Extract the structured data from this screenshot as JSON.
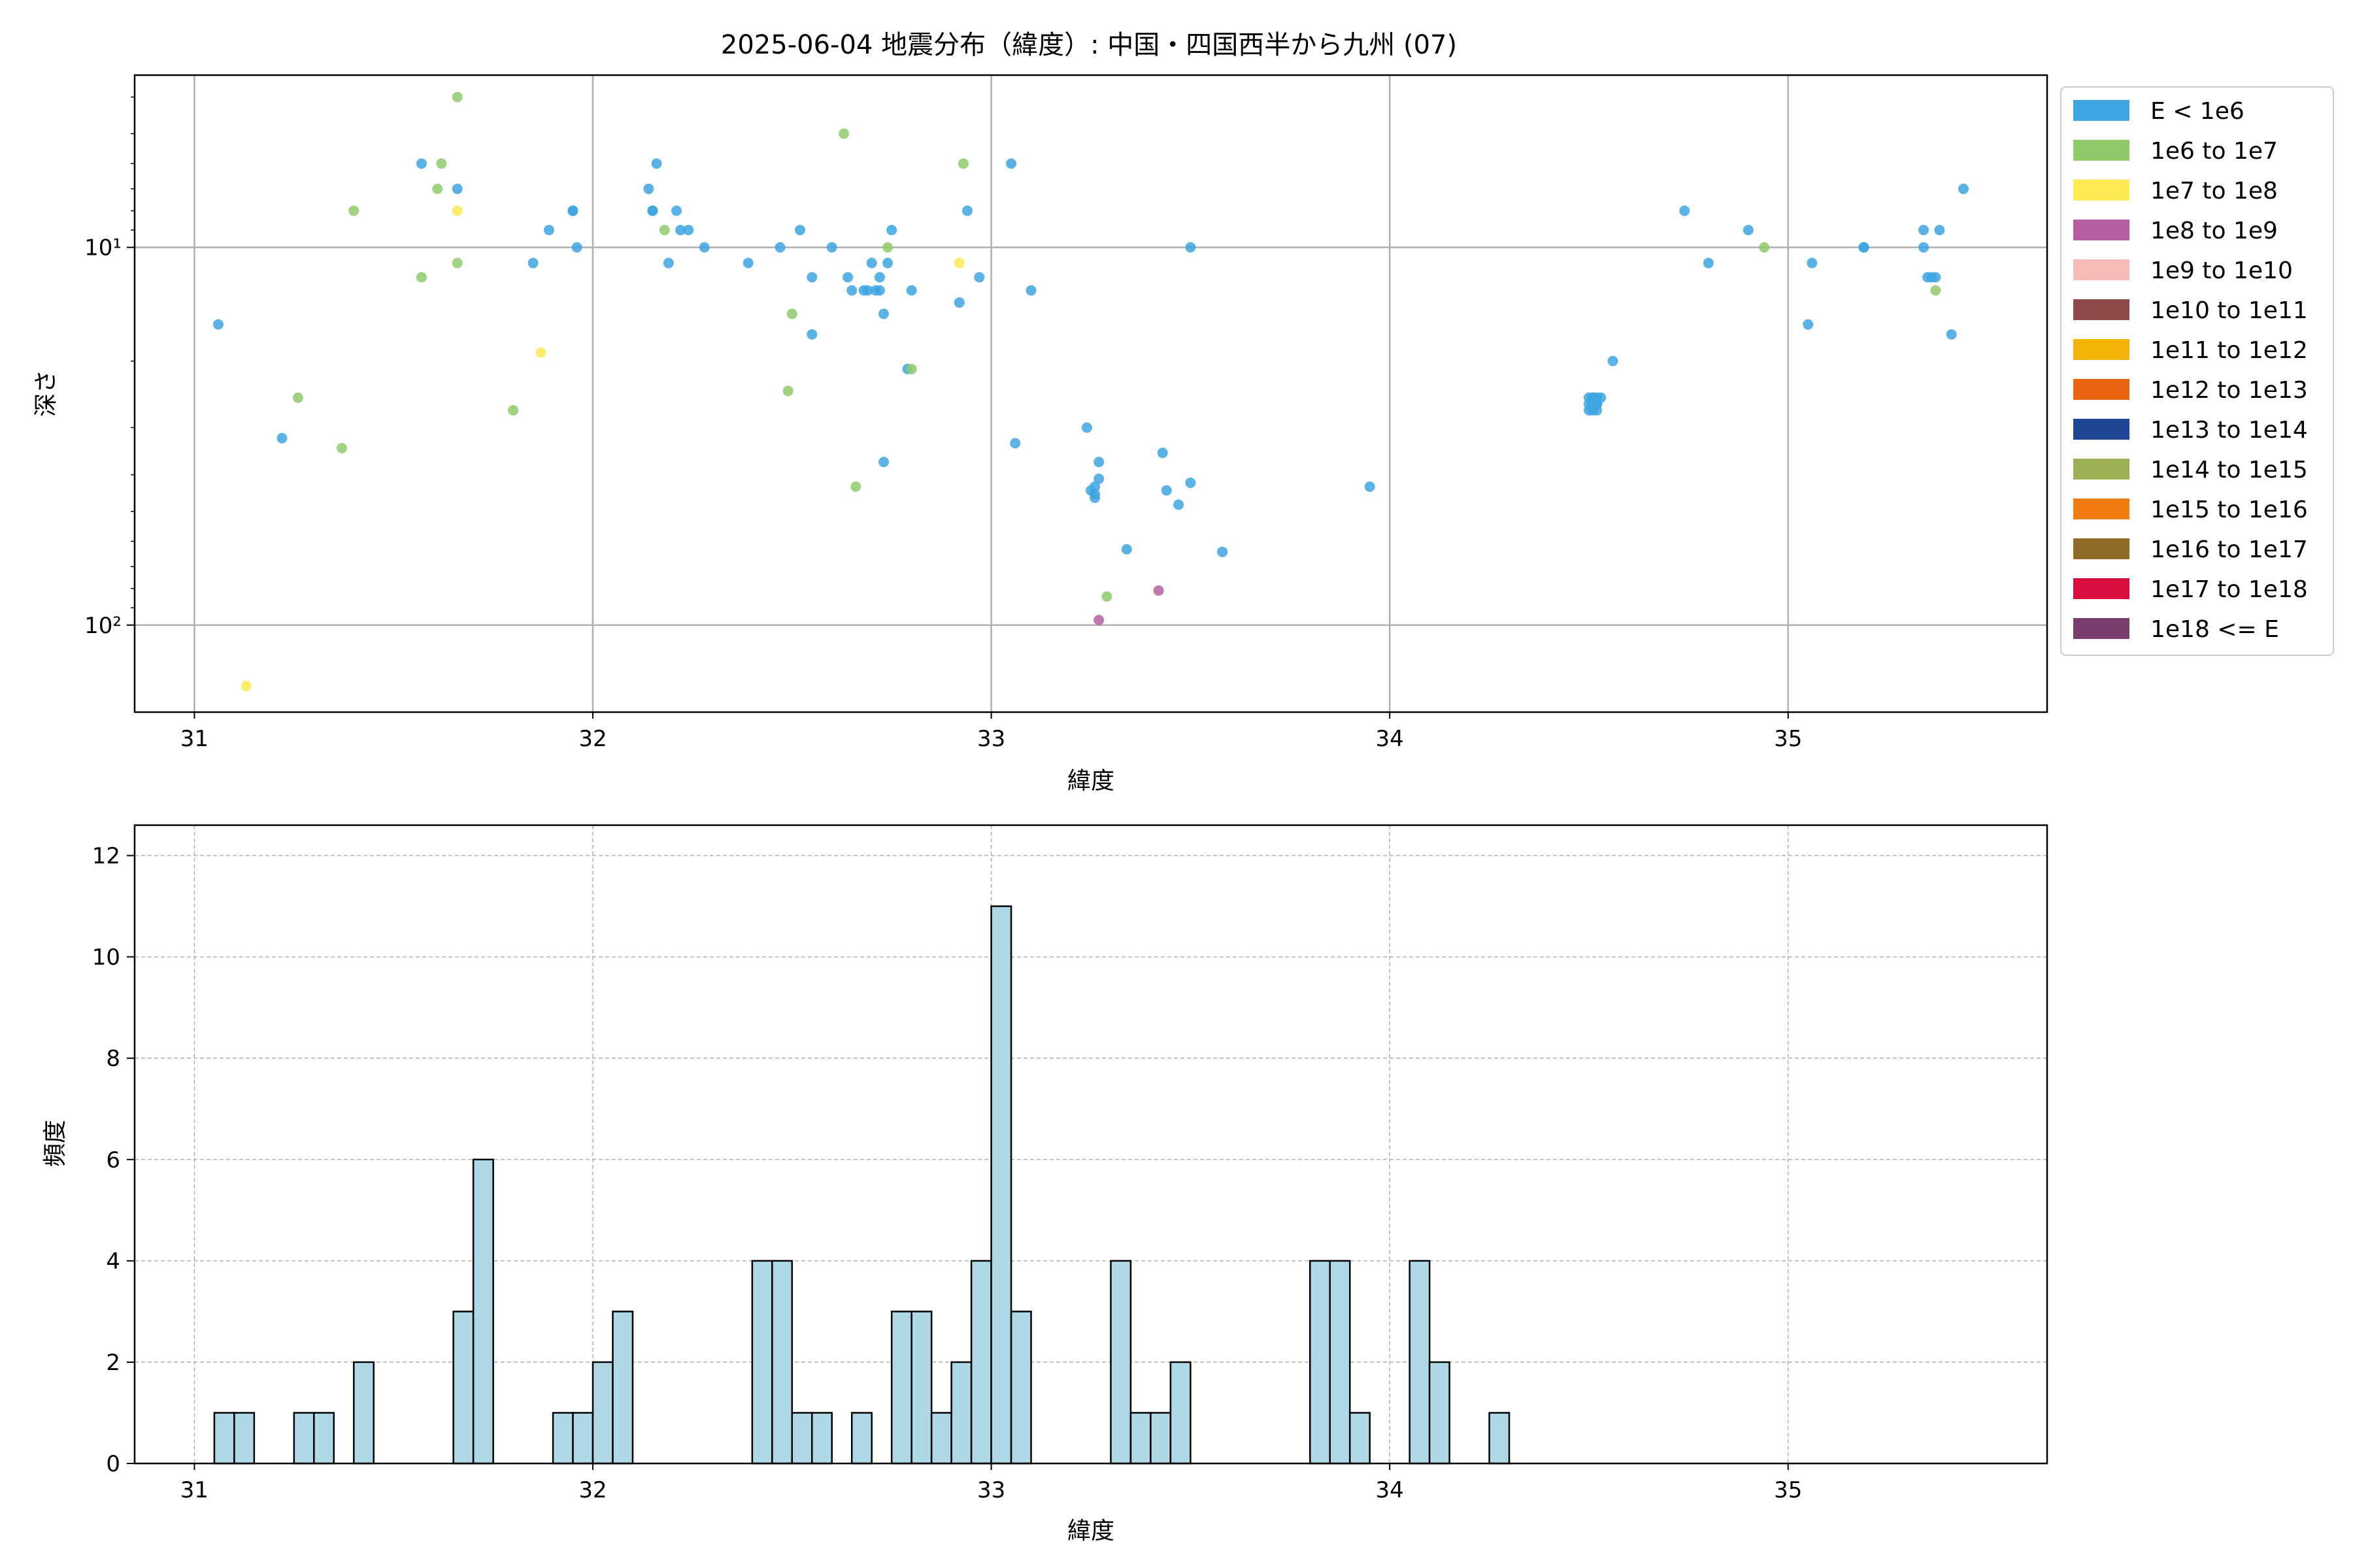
{
  "title": "2025-06-04 地震分布（緯度）: 中国・四国西半から九州 (07)",
  "colors": {
    "hist_fill": "#add8e6",
    "hist_edge": "#000000",
    "grid": "#b0b0b0",
    "axes": "#000000"
  },
  "chart_data": [
    {
      "type": "scatter",
      "xlabel": "緯度",
      "ylabel": "深さ",
      "yscale": "log",
      "yinverted": true,
      "xlim": [
        30.85,
        35.65
      ],
      "ylim": [
        170,
        3.5
      ],
      "xticks": [
        31,
        32,
        33,
        34,
        35
      ],
      "yticks": [
        {
          "value": 10,
          "label": "10¹"
        },
        {
          "value": 100,
          "label": "10²"
        }
      ],
      "grid": true,
      "legend": {
        "placement": "outside-right",
        "entries": [
          {
            "label": "E < 1e6",
            "color": "#3da5e0"
          },
          {
            "label": "1e6 to 1e7",
            "color": "#8fcb6b"
          },
          {
            "label": "1e7 to 1e8",
            "color": "#fdea55"
          },
          {
            "label": "1e8 to 1e9",
            "color": "#b560a3"
          },
          {
            "label": "1e9 to 1e10",
            "color": "#f4bcb4"
          },
          {
            "label": "1e10 to 1e11",
            "color": "#8e4a49"
          },
          {
            "label": "1e11 to 1e12",
            "color": "#f5b40a"
          },
          {
            "label": "1e12 to 1e13",
            "color": "#e8640e"
          },
          {
            "label": "1e13 to 1e14",
            "color": "#1f4793"
          },
          {
            "label": "1e14 to 1e15",
            "color": "#9cb056"
          },
          {
            "label": "1e15 to 1e16",
            "color": "#f07c12"
          },
          {
            "label": "1e16 to 1e17",
            "color": "#8f6a25"
          },
          {
            "label": "1e17 to 1e18",
            "color": "#d80f3e"
          },
          {
            "label": "1e18 <= E",
            "color": "#7a3e6c"
          }
        ]
      },
      "series": [
        {
          "name": "E < 1e6",
          "color": "#3da5e0",
          "points": [
            [
              31.06,
              16
            ],
            [
              31.22,
              32
            ],
            [
              31.57,
              6
            ],
            [
              31.66,
              7
            ],
            [
              31.85,
              11
            ],
            [
              31.89,
              9
            ],
            [
              31.95,
              8
            ],
            [
              31.95,
              8
            ],
            [
              31.96,
              10
            ],
            [
              32.14,
              7
            ],
            [
              32.15,
              8
            ],
            [
              32.15,
              8
            ],
            [
              32.16,
              6
            ],
            [
              32.19,
              11
            ],
            [
              32.21,
              8
            ],
            [
              32.22,
              9
            ],
            [
              32.24,
              9
            ],
            [
              32.28,
              10
            ],
            [
              32.39,
              11
            ],
            [
              32.47,
              10
            ],
            [
              32.52,
              9
            ],
            [
              32.55,
              12
            ],
            [
              32.55,
              17
            ],
            [
              32.6,
              10
            ],
            [
              32.64,
              12
            ],
            [
              32.65,
              13
            ],
            [
              32.68,
              13
            ],
            [
              32.69,
              13
            ],
            [
              32.7,
              11
            ],
            [
              32.71,
              13
            ],
            [
              32.72,
              12
            ],
            [
              32.72,
              13
            ],
            [
              32.73,
              15
            ],
            [
              32.74,
              11
            ],
            [
              32.75,
              9
            ],
            [
              32.79,
              21
            ],
            [
              32.8,
              13
            ],
            [
              32.73,
              37
            ],
            [
              32.92,
              14
            ],
            [
              32.94,
              8
            ],
            [
              32.97,
              12
            ],
            [
              33.05,
              6
            ],
            [
              33.06,
              33
            ],
            [
              33.1,
              13
            ],
            [
              33.24,
              30
            ],
            [
              33.25,
              44
            ],
            [
              33.26,
              45
            ],
            [
              33.26,
              43
            ],
            [
              33.26,
              46
            ],
            [
              33.27,
              41
            ],
            [
              33.27,
              37
            ],
            [
              33.34,
              63
            ],
            [
              33.43,
              35
            ],
            [
              33.44,
              44
            ],
            [
              33.47,
              48
            ],
            [
              33.5,
              42
            ],
            [
              33.5,
              10
            ],
            [
              33.58,
              64
            ],
            [
              33.95,
              43
            ],
            [
              34.5,
              26
            ],
            [
              34.51,
              27
            ],
            [
              34.52,
              26
            ],
            [
              34.51,
              25
            ],
            [
              34.52,
              27
            ],
            [
              34.5,
              25
            ],
            [
              34.53,
              25
            ],
            [
              34.51,
              26
            ],
            [
              34.52,
              26
            ],
            [
              34.51,
              25
            ],
            [
              34.5,
              27
            ],
            [
              34.52,
              25
            ],
            [
              34.56,
              20
            ],
            [
              34.74,
              8
            ],
            [
              34.8,
              11
            ],
            [
              34.9,
              9
            ],
            [
              35.06,
              11
            ],
            [
              35.05,
              16
            ],
            [
              35.19,
              10
            ],
            [
              35.19,
              10
            ],
            [
              35.34,
              9
            ],
            [
              35.34,
              10
            ],
            [
              35.35,
              12
            ],
            [
              35.36,
              12
            ],
            [
              35.37,
              12
            ],
            [
              35.38,
              9
            ],
            [
              35.41,
              17
            ],
            [
              35.44,
              7
            ]
          ]
        },
        {
          "name": "1e6 to 1e7",
          "color": "#8fcb6b",
          "points": [
            [
              31.26,
              25
            ],
            [
              31.37,
              34
            ],
            [
              31.4,
              8
            ],
            [
              31.57,
              12
            ],
            [
              31.61,
              7
            ],
            [
              31.62,
              6
            ],
            [
              31.66,
              4
            ],
            [
              31.66,
              11
            ],
            [
              31.8,
              27
            ],
            [
              32.18,
              9
            ],
            [
              32.49,
              24
            ],
            [
              32.5,
              15
            ],
            [
              32.63,
              5
            ],
            [
              32.66,
              43
            ],
            [
              32.74,
              10
            ],
            [
              32.8,
              21
            ],
            [
              32.93,
              6
            ],
            [
              33.29,
              84
            ],
            [
              34.94,
              10
            ],
            [
              35.37,
              13
            ]
          ]
        },
        {
          "name": "1e7 to 1e8",
          "color": "#fdea55",
          "points": [
            [
              31.13,
              145
            ],
            [
              31.66,
              8
            ],
            [
              31.87,
              19
            ],
            [
              32.92,
              11
            ]
          ]
        },
        {
          "name": "1e8 to 1e9",
          "color": "#b560a3",
          "points": [
            [
              33.27,
              97
            ],
            [
              33.42,
              81
            ]
          ]
        }
      ]
    },
    {
      "type": "bar",
      "subtype": "histogram",
      "xlabel": "緯度",
      "ylabel": "頻度",
      "xlim": [
        30.85,
        35.65
      ],
      "ylim": [
        0,
        12.6
      ],
      "xticks": [
        31,
        32,
        33,
        34,
        35
      ],
      "yticks": [
        0,
        2,
        4,
        6,
        8,
        10,
        12
      ],
      "grid": true,
      "bin_start": 31.0,
      "bin_width": 0.05,
      "counts": [
        0,
        1,
        1,
        0,
        0,
        1,
        1,
        0,
        2,
        0,
        0,
        0,
        0,
        3,
        6,
        0,
        0,
        0,
        1,
        1,
        2,
        3,
        0,
        0,
        0,
        0,
        0,
        0,
        4,
        4,
        1,
        1,
        0,
        1,
        0,
        3,
        3,
        1,
        2,
        4,
        11,
        3,
        0,
        0,
        0,
        0,
        4,
        1,
        1,
        2,
        0,
        0,
        0,
        0,
        0,
        0,
        4,
        4,
        1,
        0,
        0,
        4,
        2,
        0,
        0,
        1,
        0,
        0,
        0,
        0,
        0,
        0,
        0,
        0,
        0,
        0,
        0,
        0,
        0,
        0,
        0,
        0,
        0,
        0,
        0,
        0,
        0,
        0,
        0,
        0,
        0,
        0,
        0,
        0,
        0,
        0,
        0,
        0,
        0,
        0,
        0,
        0,
        0,
        0,
        0,
        0,
        0,
        0,
        0,
        0,
        0,
        0,
        0,
        0,
        0,
        0,
        0,
        0,
        0,
        0,
        0,
        0,
        0,
        0,
        0,
        0,
        0,
        0,
        0,
        0,
        0,
        0,
        0,
        0,
        0,
        0,
        0,
        0,
        0,
        0,
        0,
        0,
        0,
        0
      ]
    }
  ]
}
